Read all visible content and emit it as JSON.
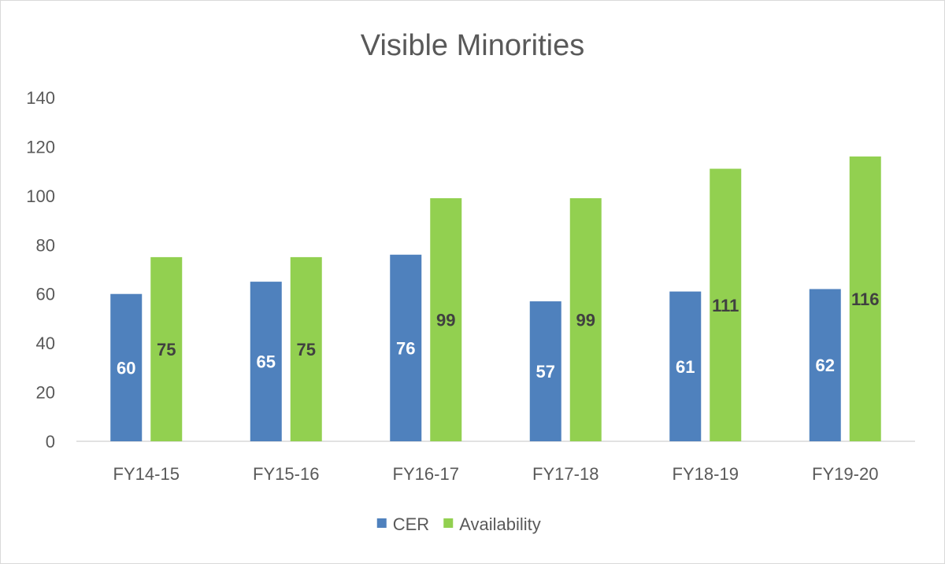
{
  "chart_data": {
    "type": "bar",
    "title": "Visible Minorities",
    "categories": [
      "FY14-15",
      "FY15-16",
      "FY16-17",
      "FY17-18",
      "FY18-19",
      "FY19-20"
    ],
    "series": [
      {
        "name": "CER",
        "values": [
          60,
          65,
          76,
          57,
          61,
          62
        ],
        "color": "#4f81bd"
      },
      {
        "name": "Availability",
        "values": [
          75,
          75,
          99,
          99,
          111,
          116
        ],
        "color": "#92d050"
      }
    ],
    "ylim": [
      0,
      140
    ],
    "yticks": [
      0,
      20,
      40,
      60,
      80,
      100,
      120,
      140
    ],
    "grid": false,
    "legend": "bottom",
    "data_labels": true
  }
}
